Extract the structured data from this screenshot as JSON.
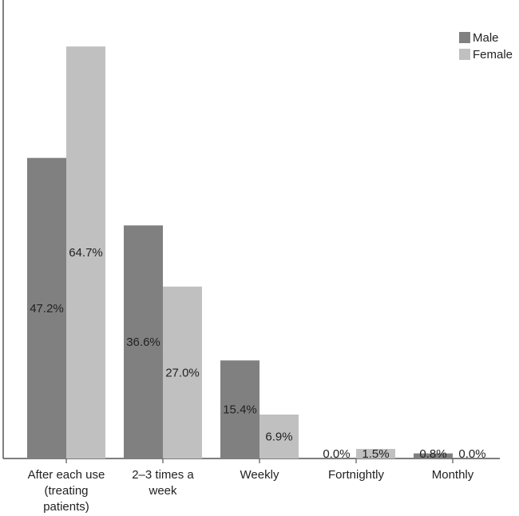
{
  "chart_data": {
    "type": "bar",
    "title": "",
    "xlabel": "",
    "ylabel": "",
    "ylim": [
      0,
      72
    ],
    "grid": false,
    "legend_position": "top-right",
    "categories": [
      [
        "After each use",
        "(treating",
        "patients)"
      ],
      [
        "2–3 times a",
        "week"
      ],
      [
        "Weekly"
      ],
      [
        "Fortnightly"
      ],
      [
        "Monthly"
      ]
    ],
    "series": [
      {
        "name": "Male",
        "color": "#808080",
        "values": [
          47.2,
          36.6,
          15.4,
          0.0,
          0.8
        ],
        "labels": [
          "47.2%",
          "36.6%",
          "15.4%",
          "0.0%",
          "0.8%"
        ]
      },
      {
        "name": "Female",
        "color": "#c0c0c0",
        "values": [
          64.7,
          27.0,
          6.9,
          1.5,
          0.0
        ],
        "labels": [
          "64.7%",
          "27.0%",
          "6.9%",
          "1.5%",
          "0.0%"
        ]
      }
    ]
  }
}
